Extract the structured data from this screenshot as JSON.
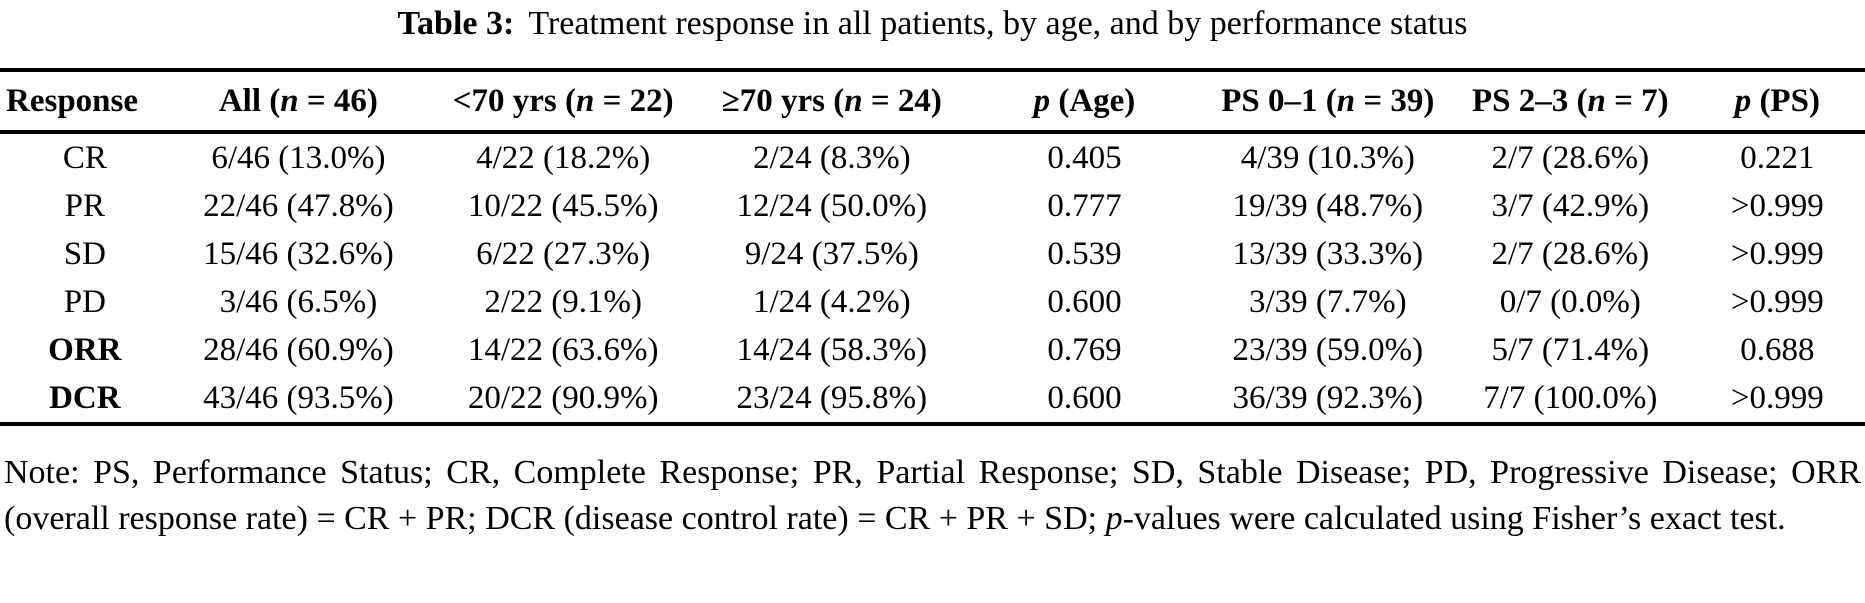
{
  "title": {
    "label": "Table 3:",
    "text": "Treatment response in all patients, by age, and by performance status"
  },
  "table": {
    "header": [
      {
        "parts": [
          {
            "t": "Response"
          }
        ]
      },
      {
        "parts": [
          {
            "t": "All ("
          },
          {
            "t": "n",
            "i": true
          },
          {
            "t": " = 46)"
          }
        ]
      },
      {
        "parts": [
          {
            "t": "<70 yrs ("
          },
          {
            "t": "n",
            "i": true
          },
          {
            "t": " = 22)"
          }
        ]
      },
      {
        "parts": [
          {
            "t": "≥70 yrs ("
          },
          {
            "t": "n",
            "i": true
          },
          {
            "t": " = 24)"
          }
        ]
      },
      {
        "parts": [
          {
            "t": "p",
            "i": true
          },
          {
            "t": " (Age)"
          }
        ]
      },
      {
        "parts": [
          {
            "t": "PS 0–1 ("
          },
          {
            "t": "n",
            "i": true
          },
          {
            "t": " = 39)"
          }
        ]
      },
      {
        "parts": [
          {
            "t": "PS 2–3 ("
          },
          {
            "t": "n",
            "i": true
          },
          {
            "t": " = 7)"
          }
        ]
      },
      {
        "parts": [
          {
            "t": "p",
            "i": true
          },
          {
            "t": " (PS)"
          }
        ]
      }
    ],
    "rows": [
      {
        "label": "CR",
        "bold": false,
        "cells": [
          "6/46 (13.0%)",
          "4/22 (18.2%)",
          "2/24 (8.3%)",
          "0.405",
          "4/39 (10.3%)",
          "2/7 (28.6%)",
          "0.221"
        ]
      },
      {
        "label": "PR",
        "bold": false,
        "cells": [
          "22/46 (47.8%)",
          "10/22 (45.5%)",
          "12/24 (50.0%)",
          "0.777",
          "19/39 (48.7%)",
          "3/7 (42.9%)",
          ">0.999"
        ]
      },
      {
        "label": "SD",
        "bold": false,
        "cells": [
          "15/46 (32.6%)",
          "6/22 (27.3%)",
          "9/24 (37.5%)",
          "0.539",
          "13/39 (33.3%)",
          "2/7 (28.6%)",
          ">0.999"
        ]
      },
      {
        "label": "PD",
        "bold": false,
        "cells": [
          "3/46 (6.5%)",
          "2/22 (9.1%)",
          "1/24 (4.2%)",
          "0.600",
          "3/39 (7.7%)",
          "0/7 (0.0%)",
          ">0.999"
        ]
      },
      {
        "label": "ORR",
        "bold": true,
        "cells": [
          "28/46 (60.9%)",
          "14/22 (63.6%)",
          "14/24 (58.3%)",
          "0.769",
          "23/39 (59.0%)",
          "5/7 (71.4%)",
          "0.688"
        ]
      },
      {
        "label": "DCR",
        "bold": true,
        "cells": [
          "43/46 (93.5%)",
          "20/22 (90.9%)",
          "23/24 (95.8%)",
          "0.600",
          "36/39 (92.3%)",
          "7/7 (100.0%)",
          ">0.999"
        ]
      }
    ]
  },
  "note": {
    "parts": [
      {
        "t": "Note: PS, Performance Status; CR, Complete Response; PR, Partial Response; SD, Stable Disease; PD, Progressive Disease; ORR (overall response rate) = CR + PR; DCR (disease control rate) = CR + PR + SD; "
      },
      {
        "t": "p",
        "i": true
      },
      {
        "t": "-values were calculated using Fisher’s exact test."
      }
    ]
  },
  "colors": {
    "text": "#000000",
    "background": "#ffffff",
    "rule": "#000000"
  }
}
